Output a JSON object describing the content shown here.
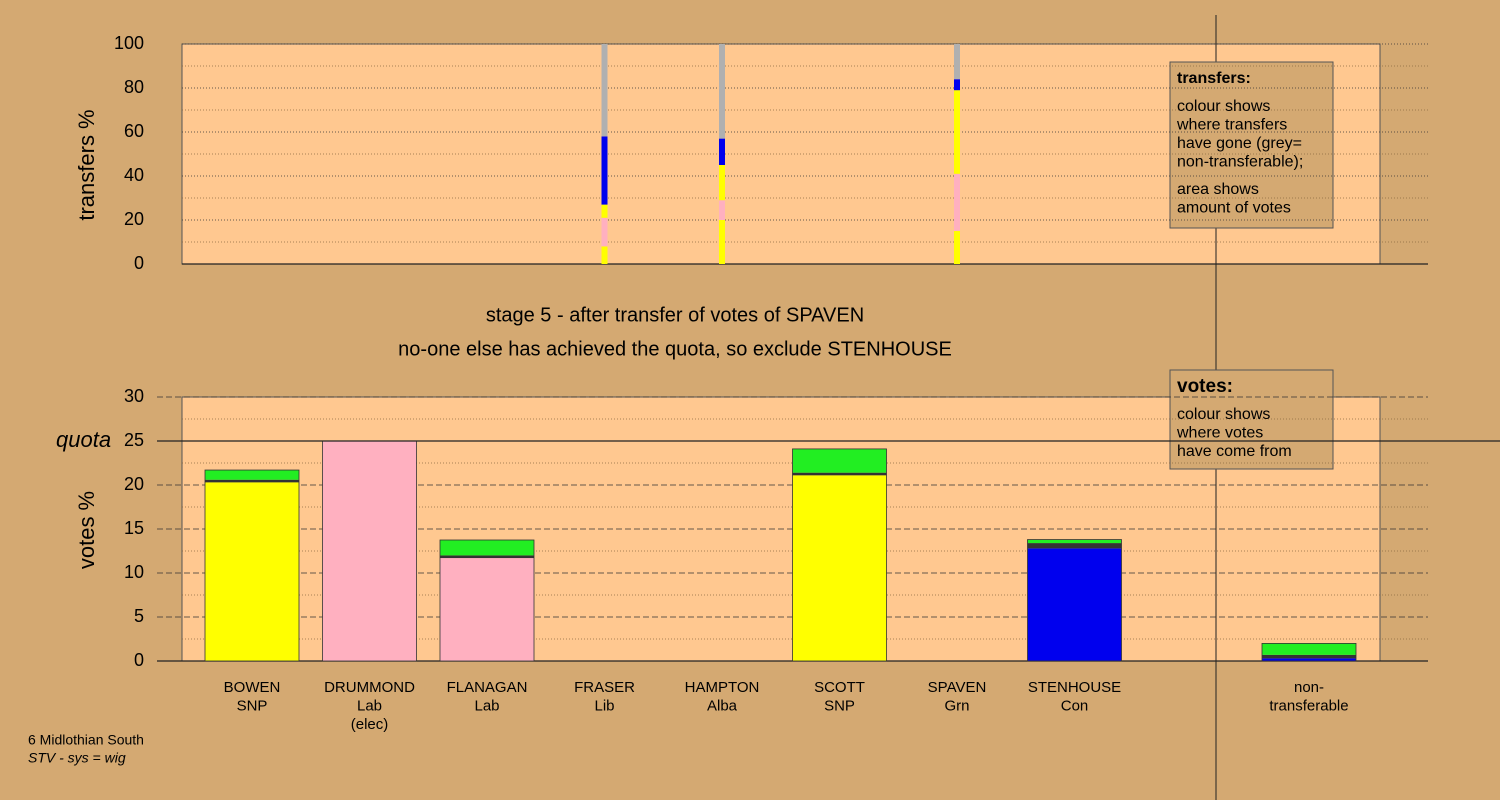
{
  "chart_data": [
    {
      "type": "stacked-bar",
      "ylabel": "transfers %",
      "ylim": [
        0,
        100
      ],
      "yticks": [
        0,
        20,
        40,
        60,
        80,
        100
      ],
      "yminor": [
        10,
        30,
        50,
        70,
        90
      ],
      "series": [
        {
          "color": "#ffff00",
          "values": [
            null,
            null,
            null,
            8,
            20,
            null,
            15,
            null,
            null
          ]
        },
        {
          "color": "#ffb0c0",
          "values": [
            null,
            null,
            null,
            13,
            9,
            null,
            26,
            null,
            null
          ]
        },
        {
          "color": "#ffff00",
          "values": [
            null,
            null,
            null,
            6,
            16,
            null,
            38,
            null,
            null
          ]
        },
        {
          "color": "#0000ee",
          "values": [
            null,
            null,
            null,
            31,
            12,
            null,
            5,
            null,
            null
          ]
        },
        {
          "color": "#b0b0b0",
          "values": [
            null,
            null,
            null,
            42,
            43,
            null,
            16,
            null,
            null
          ]
        }
      ],
      "legend_title": "transfers:",
      "legend_lines": [
        [
          "colour shows",
          "where transfers",
          "have gone (grey=",
          "non-transferable);"
        ],
        [
          "area shows",
          "amount of votes"
        ]
      ]
    },
    {
      "type": "stacked-bar",
      "title": [
        "stage 5 - after transfer of votes of SPAVEN",
        "no-one else has achieved the quota, so exclude STENHOUSE"
      ],
      "ylabel": "votes %",
      "ylim": [
        0,
        30
      ],
      "yticks": [
        0,
        5,
        10,
        15,
        20,
        25,
        30
      ],
      "yminor": [
        2.5,
        7.5,
        12.5,
        17.5,
        22.5,
        27.5
      ],
      "quota": {
        "value": 25,
        "label": "quota"
      },
      "categories": [
        [
          "BOWEN",
          "SNP"
        ],
        [
          "DRUMMOND",
          "Lab",
          "(elec)"
        ],
        [
          "FLANAGAN",
          "Lab"
        ],
        [
          "FRASER",
          "Lib"
        ],
        [
          "HAMPTON",
          "Alba"
        ],
        [
          "SCOTT",
          "SNP"
        ],
        [
          "SPAVEN",
          "Grn"
        ],
        [
          "STENHOUSE",
          "Con"
        ],
        [
          "non-",
          "transferable"
        ]
      ],
      "series": [
        {
          "color": "#ffff00",
          "values": [
            20.3,
            0,
            0,
            0,
            0,
            21.1,
            0,
            0,
            0
          ]
        },
        {
          "color": "#ffb0c0",
          "values": [
            0,
            25.0,
            11.7,
            0,
            0,
            0,
            0,
            0,
            0
          ]
        },
        {
          "color": "#0000ee",
          "values": [
            0,
            0,
            0,
            0,
            0,
            0,
            0,
            12.8,
            0.3
          ]
        },
        {
          "color": "#333333",
          "values": [
            0.3,
            0,
            0.3,
            0,
            0,
            0.3,
            0,
            0.6,
            0.4
          ]
        },
        {
          "color": "#22ee22",
          "values": [
            1.1,
            0,
            1.75,
            0,
            0,
            2.7,
            0,
            0.4,
            1.3
          ]
        }
      ],
      "legend_title": "votes:",
      "legend_lines": [
        [
          "colour shows",
          "where votes",
          "have come from"
        ]
      ],
      "footer": [
        "6 Midlothian South",
        "STV - sys = wig"
      ]
    }
  ]
}
